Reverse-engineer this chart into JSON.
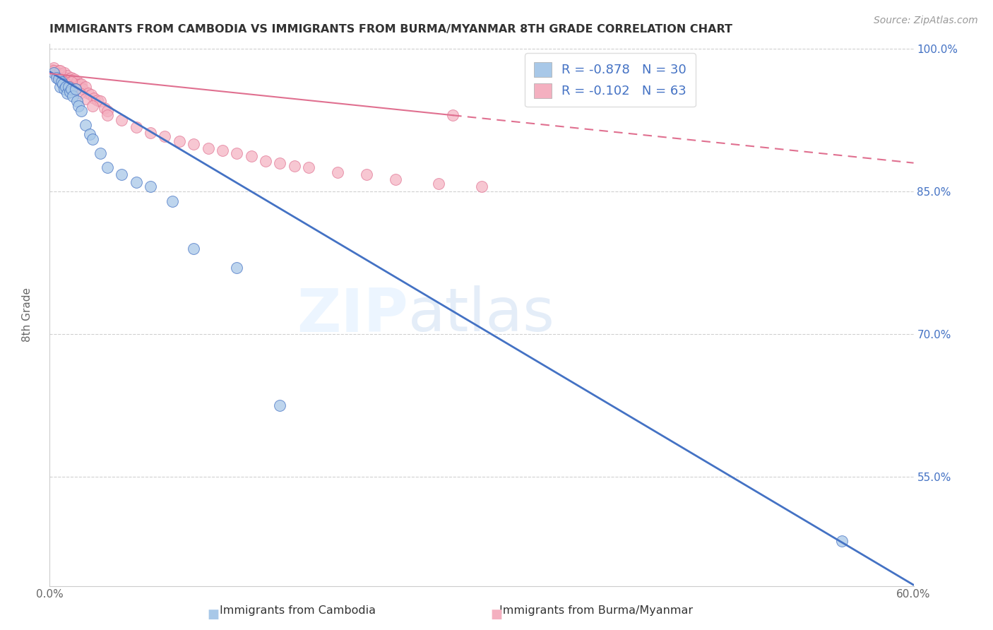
{
  "title": "IMMIGRANTS FROM CAMBODIA VS IMMIGRANTS FROM BURMA/MYANMAR 8TH GRADE CORRELATION CHART",
  "source": "Source: ZipAtlas.com",
  "ylabel": "8th Grade",
  "xlabel_cambodia": "Immigrants from Cambodia",
  "xlabel_burma": "Immigrants from Burma/Myanmar",
  "legend_cambodia": {
    "R": "-0.878",
    "N": "30"
  },
  "legend_burma": {
    "R": "-0.102",
    "N": "63"
  },
  "xlim": [
    0.0,
    0.6
  ],
  "ylim": [
    0.435,
    1.005
  ],
  "color_cambodia": "#a8c8e8",
  "color_burma": "#f4b0c0",
  "color_cambodia_line": "#4472c4",
  "color_burma_line": "#e07090",
  "watermark_zip": "ZIP",
  "watermark_atlas": "atlas",
  "background_color": "#ffffff",
  "grid_color": "#d0d0d0",
  "yticks_right": [
    0.55,
    0.7,
    0.85,
    1.0
  ],
  "ytick_labels_right": [
    "55.0%",
    "70.0%",
    "85.0%",
    "100.0%"
  ],
  "blue_line_x0": 0.0,
  "blue_line_y0": 0.976,
  "blue_line_x1": 0.6,
  "blue_line_y1": 0.436,
  "pink_line_x0": 0.0,
  "pink_line_y0": 0.974,
  "pink_line_x1": 0.6,
  "pink_line_y1": 0.88,
  "blue_scatter_x": [
    0.003,
    0.005,
    0.006,
    0.007,
    0.008,
    0.009,
    0.01,
    0.011,
    0.012,
    0.013,
    0.014,
    0.015,
    0.016,
    0.018,
    0.019,
    0.02,
    0.022,
    0.025,
    0.028,
    0.03,
    0.035,
    0.04,
    0.05,
    0.06,
    0.07,
    0.085,
    0.1,
    0.13,
    0.16,
    0.55
  ],
  "blue_scatter_y": [
    0.975,
    0.97,
    0.968,
    0.96,
    0.965,
    0.963,
    0.958,
    0.96,
    0.953,
    0.96,
    0.955,
    0.958,
    0.95,
    0.958,
    0.945,
    0.94,
    0.935,
    0.92,
    0.91,
    0.905,
    0.89,
    0.875,
    0.868,
    0.86,
    0.855,
    0.84,
    0.79,
    0.77,
    0.625,
    0.482
  ],
  "pink_scatter_x": [
    0.002,
    0.003,
    0.004,
    0.005,
    0.006,
    0.007,
    0.008,
    0.009,
    0.01,
    0.011,
    0.012,
    0.013,
    0.014,
    0.015,
    0.016,
    0.017,
    0.018,
    0.019,
    0.02,
    0.021,
    0.022,
    0.023,
    0.025,
    0.027,
    0.029,
    0.031,
    0.033,
    0.035,
    0.038,
    0.04,
    0.003,
    0.006,
    0.008,
    0.01,
    0.012,
    0.015,
    0.018,
    0.021,
    0.025,
    0.03,
    0.04,
    0.05,
    0.06,
    0.07,
    0.08,
    0.09,
    0.1,
    0.11,
    0.12,
    0.13,
    0.14,
    0.15,
    0.16,
    0.17,
    0.18,
    0.2,
    0.22,
    0.24,
    0.27,
    0.3,
    0.007,
    0.014,
    0.28
  ],
  "pink_scatter_y": [
    0.978,
    0.98,
    0.975,
    0.972,
    0.977,
    0.974,
    0.972,
    0.968,
    0.975,
    0.97,
    0.972,
    0.968,
    0.965,
    0.97,
    0.967,
    0.968,
    0.963,
    0.966,
    0.96,
    0.963,
    0.963,
    0.958,
    0.96,
    0.953,
    0.952,
    0.948,
    0.946,
    0.945,
    0.938,
    0.935,
    0.977,
    0.97,
    0.967,
    0.965,
    0.962,
    0.965,
    0.958,
    0.953,
    0.947,
    0.94,
    0.93,
    0.925,
    0.918,
    0.912,
    0.908,
    0.903,
    0.9,
    0.895,
    0.893,
    0.89,
    0.887,
    0.882,
    0.88,
    0.877,
    0.875,
    0.87,
    0.868,
    0.863,
    0.858,
    0.855,
    0.977,
    0.96,
    0.93
  ]
}
